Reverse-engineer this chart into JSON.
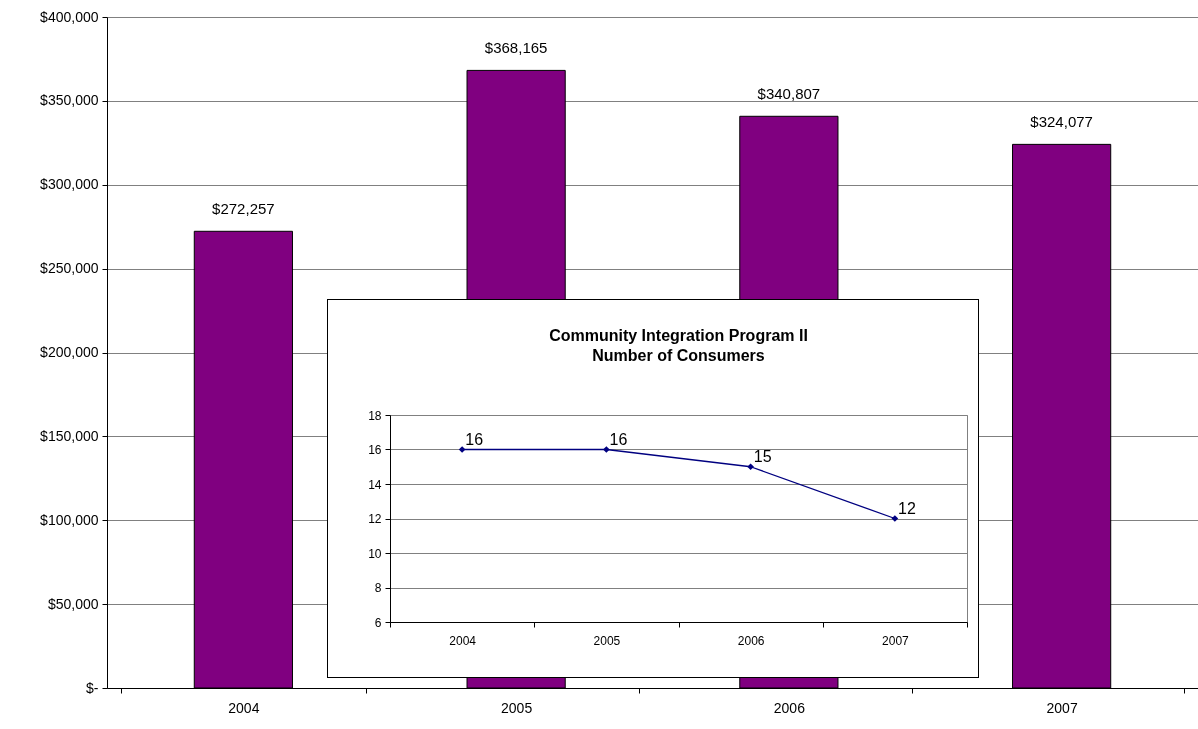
{
  "chart_data": [
    {
      "type": "bar",
      "categories": [
        "2004",
        "2005",
        "2006",
        "2007"
      ],
      "values": [
        272257,
        368165,
        340807,
        324077
      ],
      "color": "#800080",
      "value_labels": [
        "$272,257",
        "$368,165",
        "$340,807",
        "$324,077"
      ],
      "ylim": [
        0,
        400000
      ],
      "yticks": [
        {
          "value": 0,
          "label": "$-"
        },
        {
          "value": 50000,
          "label": "$50,000"
        },
        {
          "value": 100000,
          "label": "$100,000"
        },
        {
          "value": 150000,
          "label": "$150,000"
        },
        {
          "value": 200000,
          "label": "$200,000"
        },
        {
          "value": 250000,
          "label": "$250,000"
        },
        {
          "value": 300000,
          "label": "$300,000"
        },
        {
          "value": 350000,
          "label": "$350,000"
        },
        {
          "value": 400000,
          "label": "$400,000"
        }
      ],
      "grid": "y"
    },
    {
      "type": "line",
      "title": "Community Integration Program II\nNumber of Consumers",
      "categories": [
        "2004",
        "2005",
        "2006",
        "2007"
      ],
      "values": [
        16,
        16,
        15,
        12
      ],
      "color": "#000080",
      "marker": "diamond",
      "data_labels": true,
      "ylim": [
        6,
        18
      ],
      "yticks": [
        6,
        8,
        10,
        12,
        14,
        16,
        18
      ],
      "grid": "y"
    }
  ]
}
